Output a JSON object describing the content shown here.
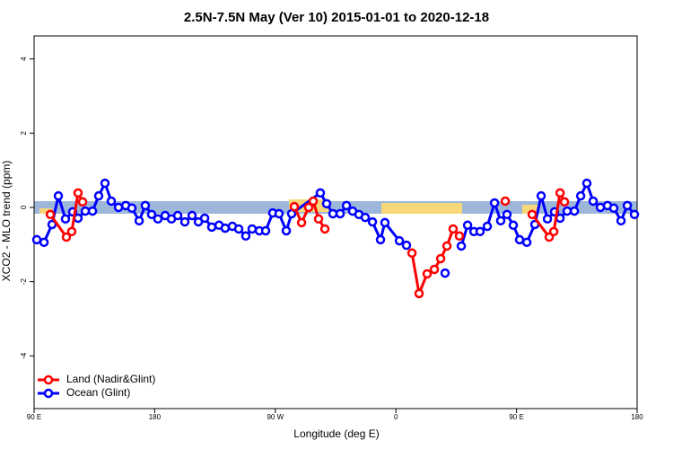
{
  "chart_data": {
    "type": "line",
    "title": "2.5N-7.5N May (Ver 10)   2015-01-01 to 2020-12-18",
    "x_label": "Longitude (deg E)",
    "y_label": "XCO2 - MLO trend (ppm)",
    "xlim": [
      90,
      540
    ],
    "ylim": [
      -5.42,
      4.62
    ],
    "xticks": [
      {
        "value": 90,
        "label": "90 E"
      },
      {
        "value": 180,
        "label": "180"
      },
      {
        "value": 270,
        "label": "90 W"
      },
      {
        "value": 360,
        "label": "0"
      },
      {
        "value": 450,
        "label": "90 E"
      },
      {
        "value": 540,
        "label": "180"
      }
    ],
    "yticks": [
      -4,
      -2,
      0,
      2,
      4
    ],
    "legend": "bottom-left",
    "series": [
      {
        "name": "Ocean (Glint)",
        "color": "#0000ff",
        "x": [
          92.0,
          97.4,
          103.4,
          108.1,
          113.4,
          118.8,
          122.8,
          128.2,
          133.6,
          138.2,
          142.9,
          147.6,
          153.0,
          158.4,
          163.0,
          168.4,
          173.0,
          177.7,
          182.4,
          187.8,
          192.5,
          197.2,
          202.5,
          207.9,
          212.6,
          217.3,
          222.6,
          228.0,
          232.6,
          238.0,
          242.7,
          248.0,
          252.7,
          258.1,
          262.8,
          268.1,
          272.8,
          278.2,
          282.2,
          303.6,
          308.3,
          313.0,
          318.4,
          323.1,
          327.7,
          332.4,
          337.1,
          342.5,
          348.5,
          351.8,
          362.6,
          367.9,
          380.0,
          396.7,
          405.0,
          408.8,
          413.5,
          418.2,
          422.8,
          428.2,
          433.6,
          438.2,
          442.9,
          447.6,
          452.3,
          457.7,
          463.7,
          468.4,
          473.1,
          478.4,
          482.5,
          487.8,
          493.2,
          497.9,
          502.5,
          507.2,
          512.6,
          517.9,
          522.6,
          528.0,
          532.7,
          538.0
        ],
        "values": [
          -0.87,
          -0.94,
          -0.46,
          0.31,
          -0.31,
          -0.12,
          -0.29,
          -0.1,
          -0.1,
          0.31,
          0.65,
          0.17,
          0,
          0.05,
          -0.02,
          -0.36,
          0.05,
          -0.19,
          -0.31,
          -0.22,
          -0.31,
          -0.22,
          -0.39,
          -0.22,
          -0.39,
          -0.29,
          -0.53,
          -0.48,
          -0.56,
          -0.51,
          -0.58,
          -0.77,
          -0.58,
          -0.63,
          -0.63,
          -0.15,
          -0.17,
          -0.63,
          -0.17,
          0.39,
          0.1,
          -0.17,
          -0.17,
          0.05,
          -0.1,
          -0.19,
          -0.27,
          -0.39,
          -0.87,
          -0.41,
          -0.9,
          -1.02,
          null,
          -1.77,
          null,
          -1.04,
          -0.48,
          -0.65,
          -0.65,
          -0.51,
          0.12,
          -0.36,
          -0.19,
          -0.48,
          -0.87,
          -0.94,
          -0.46,
          0.31,
          -0.31,
          -0.12,
          -0.29,
          -0.1,
          -0.1,
          0.31,
          0.65,
          0.17,
          0,
          0.05,
          -0.02,
          -0.36,
          0.05,
          -0.19
        ]
      },
      {
        "name": "Land (Nadir&Glint)",
        "color": "#ff0000",
        "x": [
          102.1,
          114.1,
          118.1,
          122.8,
          126.2,
          200.0,
          284.2,
          289.6,
          294.9,
          298.3,
          302.3,
          307.0,
          340.0,
          372.0,
          377.3,
          383.3,
          388.7,
          393.4,
          398.1,
          402.7,
          407.4,
          420.0,
          441.6,
          450.0,
          461.7,
          474.4,
          477.8,
          482.5,
          485.8
        ],
        "values": [
          -0.19,
          -0.8,
          -0.65,
          0.39,
          0.15,
          null,
          0.02,
          -0.41,
          0,
          0.17,
          -0.31,
          -0.58,
          null,
          -1.23,
          -2.32,
          -1.79,
          -1.67,
          -1.38,
          -1.04,
          -0.58,
          -0.77,
          null,
          0.17,
          null,
          -0.19,
          -0.8,
          -0.65,
          0.39,
          0.15
        ]
      }
    ]
  }
}
